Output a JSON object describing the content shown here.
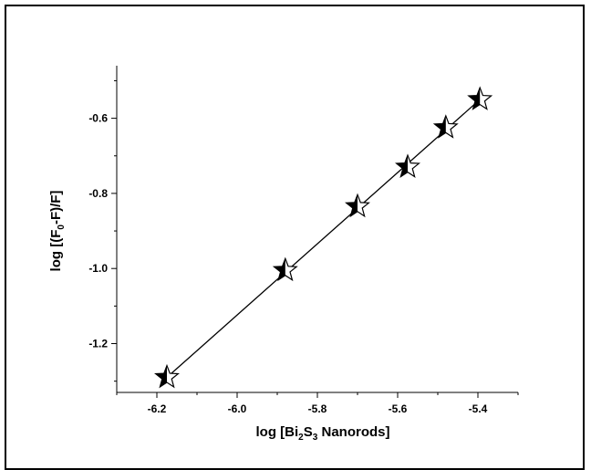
{
  "chart_data": {
    "type": "scatter",
    "title": "",
    "xlabel": "log [Bi2S3 Nanorods]",
    "xlabel_parts": [
      "log [Bi",
      "2",
      "S",
      "3",
      " Nanorods]"
    ],
    "ylabel": "log [(F0-F)/F]",
    "ylabel_parts": [
      "log [(F",
      "0",
      "-F)/F]"
    ],
    "xlim": [
      -6.3,
      -5.3
    ],
    "ylim": [
      -1.33,
      -0.46
    ],
    "x_ticks": [
      -6.2,
      -6.0,
      -5.8,
      -5.6,
      -5.4
    ],
    "x_tick_labels": [
      "-6.2",
      "-6.0",
      "-5.8",
      "-5.6",
      "-5.4"
    ],
    "y_ticks": [
      -1.2,
      -1.0,
      -0.8,
      -0.6
    ],
    "y_tick_labels": [
      "-1.2",
      "-1.0",
      "-0.8",
      "-0.6"
    ],
    "grid": false,
    "legend": "none",
    "marker": "half-filled-star",
    "fit_line": true,
    "series": [
      {
        "x": [
          -6.175,
          -5.88,
          -5.7,
          -5.575,
          -5.48,
          -5.395
        ],
        "y": [
          -1.29,
          -1.005,
          -0.835,
          -0.73,
          -0.625,
          -0.55
        ]
      }
    ],
    "colors": {
      "axis": "#000000",
      "marker": "#000000",
      "line": "#000000"
    }
  }
}
